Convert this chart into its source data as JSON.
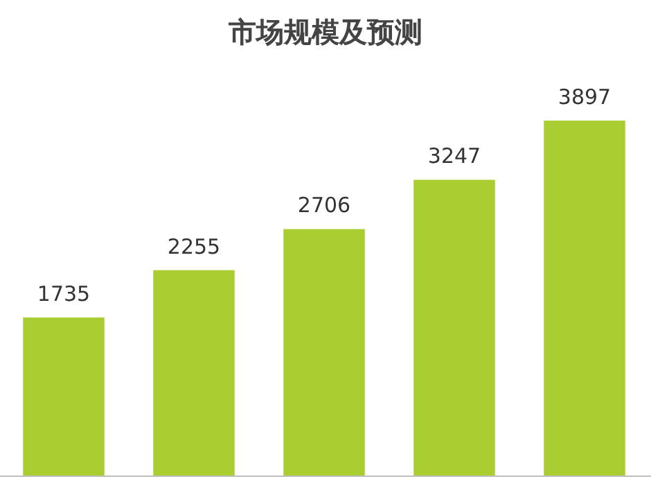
{
  "chart_data": {
    "type": "bar",
    "title": "市场规模及预测",
    "categories": [
      null,
      null,
      null,
      null,
      null
    ],
    "values": [
      1735,
      2255,
      2706,
      3247,
      3897
    ],
    "color": "#aacd32",
    "data_labels": true
  }
}
